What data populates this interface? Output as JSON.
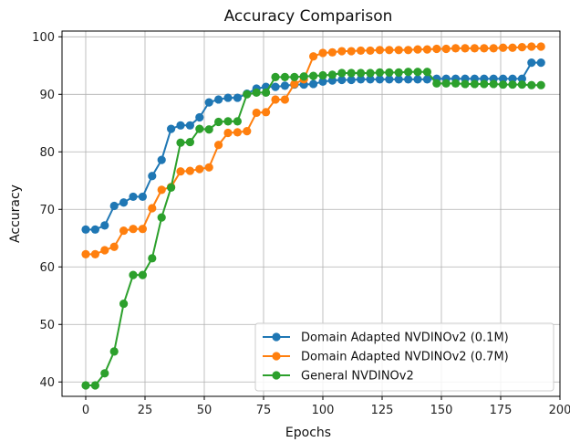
{
  "chart_data": {
    "type": "line",
    "title": "Accuracy Comparison",
    "xlabel": "Epochs",
    "ylabel": "Accuracy",
    "xlim": [
      -10,
      200
    ],
    "ylim": [
      37.5,
      101
    ],
    "xticks": [
      0,
      25,
      50,
      75,
      100,
      125,
      150,
      175,
      200
    ],
    "yticks": [
      40,
      50,
      60,
      70,
      80,
      90,
      100
    ],
    "grid": true,
    "legend_position": "lower-right",
    "x": [
      0,
      4,
      8,
      12,
      16,
      20,
      24,
      28,
      32,
      36,
      40,
      44,
      48,
      52,
      56,
      60,
      64,
      68,
      72,
      76,
      80,
      84,
      88,
      92,
      96,
      100,
      104,
      108,
      112,
      116,
      120,
      124,
      128,
      132,
      136,
      140,
      144,
      148,
      152,
      156,
      160,
      164,
      168,
      172,
      176,
      180,
      184,
      188,
      192
    ],
    "series": [
      {
        "name": "Domain Adapted NVDINOv2 (0.1M)",
        "color": "#1f77b4",
        "values": [
          66.5,
          66.5,
          67.2,
          70.6,
          71.2,
          72.2,
          72.2,
          75.8,
          78.6,
          84.0,
          84.6,
          84.6,
          86.0,
          88.6,
          89.1,
          89.4,
          89.4,
          90.1,
          91.0,
          91.3,
          91.3,
          91.5,
          91.7,
          91.7,
          91.8,
          92.2,
          92.4,
          92.5,
          92.5,
          92.6,
          92.6,
          92.6,
          92.6,
          92.6,
          92.6,
          92.6,
          92.6,
          92.7,
          92.7,
          92.7,
          92.7,
          92.7,
          92.7,
          92.7,
          92.7,
          92.7,
          92.7,
          95.5,
          95.5
        ]
      },
      {
        "name": "Domain Adapted NVDINOv2 (0.7M)",
        "color": "#ff7f0e",
        "values": [
          62.2,
          62.2,
          62.9,
          63.5,
          66.3,
          66.6,
          66.6,
          70.2,
          73.4,
          73.9,
          76.6,
          76.7,
          77.0,
          77.3,
          81.2,
          83.3,
          83.4,
          83.6,
          86.8,
          86.9,
          89.1,
          89.1,
          91.8,
          92.6,
          96.6,
          97.2,
          97.3,
          97.5,
          97.5,
          97.6,
          97.6,
          97.7,
          97.7,
          97.7,
          97.7,
          97.8,
          97.8,
          97.9,
          97.9,
          98.0,
          98.0,
          98.0,
          98.0,
          98.0,
          98.1,
          98.1,
          98.2,
          98.3,
          98.3
        ]
      },
      {
        "name": "General NVDINOv2",
        "color": "#2ca02c",
        "values": [
          39.4,
          39.4,
          41.5,
          45.3,
          53.6,
          58.6,
          58.6,
          61.5,
          68.6,
          73.8,
          81.6,
          81.7,
          84.0,
          83.9,
          85.2,
          85.3,
          85.3,
          90.0,
          90.3,
          90.3,
          93.0,
          93.0,
          93.0,
          93.1,
          93.2,
          93.3,
          93.4,
          93.7,
          93.7,
          93.7,
          93.7,
          93.8,
          93.8,
          93.8,
          93.9,
          93.9,
          93.9,
          91.9,
          91.9,
          91.9,
          91.8,
          91.8,
          91.8,
          91.8,
          91.7,
          91.7,
          91.7,
          91.6,
          91.6
        ]
      }
    ]
  }
}
